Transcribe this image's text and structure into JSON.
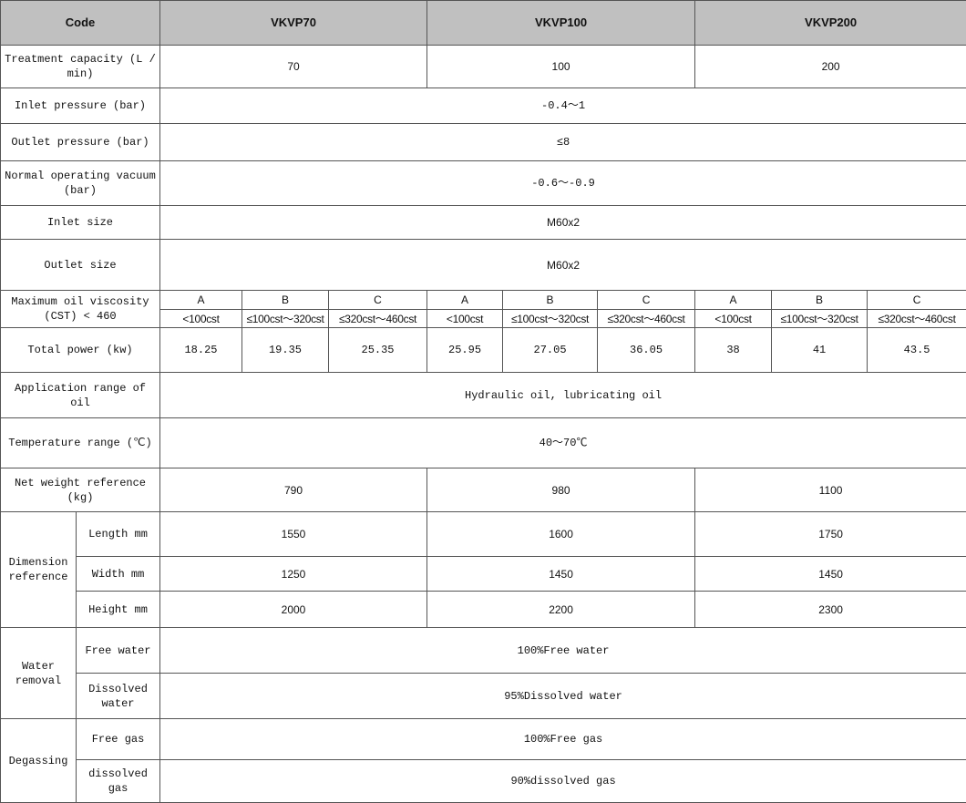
{
  "header": {
    "code": "Code",
    "models": [
      "VKVP70",
      "VKVP100",
      "VKVP200"
    ],
    "bg_color": "#c0c0c0"
  },
  "rows": {
    "capacity": {
      "label": "Treatment capacity (L / min)",
      "values": [
        "70",
        "100",
        "200"
      ]
    },
    "inlet_pressure": {
      "label": "Inlet pressure (bar)",
      "value": "-0.4～1"
    },
    "outlet_pressure": {
      "label": "Outlet pressure (bar)",
      "value": "≤8"
    },
    "vacuum": {
      "label": "Normal operating vacuum (bar)",
      "value": "-0.6～-0.9"
    },
    "inlet_size": {
      "label": "Inlet size",
      "value": "M60x2"
    },
    "outlet_size": {
      "label": "Outlet size",
      "value": "M60x2"
    },
    "viscosity": {
      "label": "Maximum oil viscosity (CST) < 460",
      "grades": [
        "A",
        "B",
        "C",
        "A",
        "B",
        "C",
        "A",
        "B",
        "C"
      ],
      "ranges": [
        "<100cst",
        "≤100cst～320cst",
        "≤320cst～460cst",
        "<100cst",
        "≤100cst～320cst",
        "≤320cst～460cst",
        "<100cst",
        "≤100cst～320cst",
        "≤320cst～460cst"
      ]
    },
    "power": {
      "label": "Total power (kw)",
      "values": [
        "18.25",
        "19.35",
        "25.35",
        "25.95",
        "27.05",
        "36.05",
        "38",
        "41",
        "43.5"
      ]
    },
    "application": {
      "label": "Application range of oil",
      "value": "Hydraulic oil, lubricating oil"
    },
    "temperature": {
      "label": "Temperature range (℃)",
      "value": "40～70℃"
    },
    "weight": {
      "label": "Net weight reference (kg)",
      "values": [
        "790",
        "980",
        "1100"
      ]
    },
    "dimension": {
      "label": "Dimension reference",
      "length": {
        "label": "Length mm",
        "values": [
          "1550",
          "1600",
          "1750"
        ]
      },
      "width": {
        "label": "Width mm",
        "values": [
          "1250",
          "1450",
          "1450"
        ]
      },
      "height": {
        "label": "Height mm",
        "values": [
          "2000",
          "2200",
          "2300"
        ]
      }
    },
    "water": {
      "label": "Water removal",
      "free": {
        "label": "Free water",
        "value": "100%Free water"
      },
      "dissolved": {
        "label": "Dissolved water",
        "value": "95%Dissolved water"
      }
    },
    "degassing": {
      "label": "Degassing",
      "free": {
        "label": "Free gas",
        "value": "100%Free gas"
      },
      "dissolved": {
        "label": "dissolved gas",
        "value": "90%dissolved gas"
      }
    }
  }
}
